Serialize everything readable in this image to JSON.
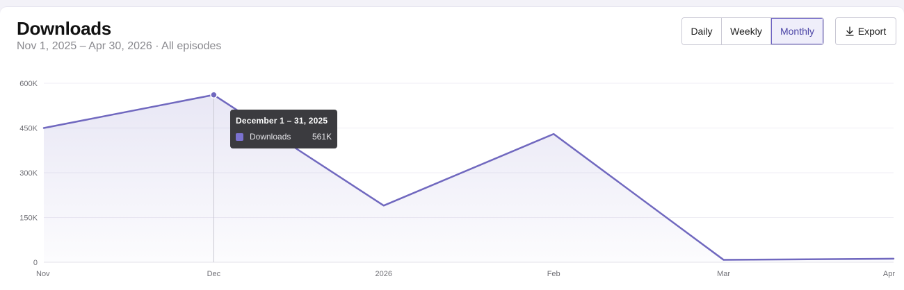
{
  "header": {
    "title": "Downloads",
    "subtitle": "Nov 1, 2025 – Apr 30, 2026 · All episodes"
  },
  "controls": {
    "periods": [
      {
        "label": "Daily",
        "active": false
      },
      {
        "label": "Weekly",
        "active": false
      },
      {
        "label": "Monthly",
        "active": true
      }
    ],
    "export_label": "Export",
    "export_icon": "download-icon"
  },
  "tooltip": {
    "title": "December 1 – 31, 2025",
    "series": "Downloads",
    "value": "561K"
  },
  "colors": {
    "line": "#7068bf",
    "accent": "#4b44a6",
    "tooltip_bg": "#3b3b3f"
  },
  "chart_data": {
    "type": "area",
    "categories": [
      "Nov",
      "Dec",
      "2026",
      "Feb",
      "Mar",
      "Apr"
    ],
    "series": [
      {
        "name": "Downloads",
        "values": [
          450000,
          561000,
          190000,
          430000,
          8000,
          12000
        ]
      }
    ],
    "ylim": [
      0,
      600000
    ],
    "yticks": [
      0,
      150000,
      300000,
      450000,
      600000
    ],
    "ytick_labels": [
      "0",
      "150K",
      "300K",
      "450K",
      "600K"
    ],
    "highlight_index": 1,
    "grid": true
  }
}
